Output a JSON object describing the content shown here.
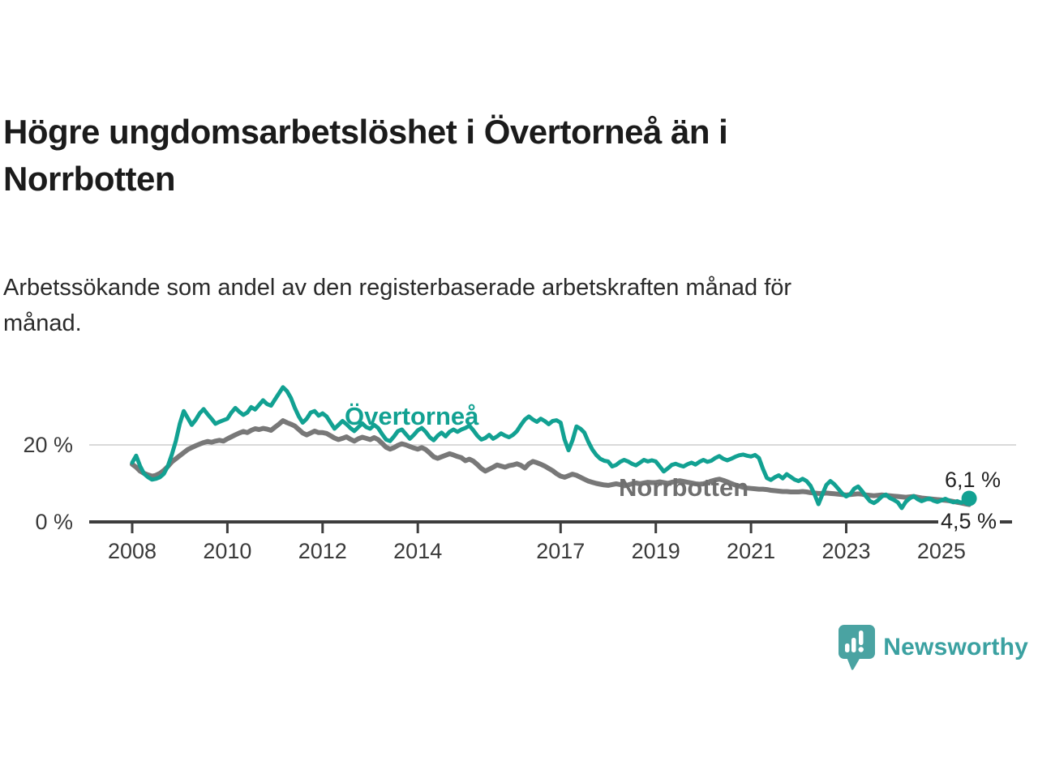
{
  "header": {
    "title_lines": [
      "Högre ungdomsarbetslöshet i Övertorneå än i",
      "Norrbotten"
    ],
    "subtitle_lines": [
      "Arbetssökande som andel av den registerbaserade arbetskraften månad för",
      "månad."
    ]
  },
  "chart_data": {
    "type": "line",
    "title": "Högre ungdomsarbetslöshet i Övertorneå än i Norrbotten",
    "subtitle": "Arbetssökande som andel av den registerbaserade arbetskraften månad för månad.",
    "x_start_year": 2008,
    "x_step_months": 1,
    "x_ticks": [
      2008,
      2010,
      2012,
      2014,
      2017,
      2019,
      2021,
      2023,
      2025
    ],
    "y_axis": {
      "unit": "%",
      "ylim": [
        0,
        36
      ],
      "ticks": [
        {
          "value": 0,
          "label": "0 %"
        },
        {
          "value": 20,
          "label": "20 %"
        }
      ],
      "gridline_at": 20
    },
    "legend_position": "inline-labels",
    "grid": "single-horizontal",
    "series": [
      {
        "id": "overtornea",
        "name": "Övertorneå",
        "color": "#12a192",
        "last_value_label": "6,1 %",
        "values": [
          15.4,
          17.2,
          14.5,
          12.5,
          11.6,
          11.0,
          11.2,
          11.6,
          12.5,
          14.5,
          17.5,
          21.0,
          25.5,
          28.8,
          27.0,
          25.2,
          26.5,
          28.2,
          29.3,
          28.0,
          26.8,
          25.5,
          26.0,
          26.4,
          26.8,
          28.4,
          29.6,
          28.6,
          27.8,
          28.4,
          29.8,
          29.2,
          30.4,
          31.6,
          30.6,
          30.2,
          31.8,
          33.4,
          35.0,
          34.0,
          32.2,
          29.6,
          27.4,
          25.8,
          26.8,
          28.4,
          28.8,
          27.6,
          28.2,
          27.4,
          25.8,
          24.2,
          25.2,
          26.2,
          25.4,
          24.4,
          23.6,
          24.6,
          25.6,
          24.6,
          24.2,
          25.2,
          24.4,
          22.8,
          21.4,
          21.0,
          22.2,
          23.6,
          24.0,
          22.8,
          21.6,
          22.6,
          23.8,
          24.4,
          23.4,
          22.0,
          21.2,
          22.4,
          23.2,
          22.2,
          23.4,
          24.0,
          23.4,
          24.0,
          24.4,
          25.0,
          23.8,
          22.4,
          21.4,
          21.8,
          22.6,
          21.6,
          22.2,
          23.0,
          22.4,
          22.0,
          22.6,
          23.6,
          25.2,
          26.6,
          27.4,
          26.6,
          26.0,
          26.8,
          26.2,
          25.4,
          26.2,
          26.4,
          25.8,
          21.4,
          18.6,
          21.2,
          24.8,
          24.2,
          23.2,
          20.8,
          18.8,
          17.4,
          16.4,
          15.9,
          15.7,
          14.4,
          14.8,
          15.6,
          16.1,
          15.7,
          15.1,
          14.7,
          15.4,
          16.1,
          15.7,
          16.0,
          15.7,
          14.4,
          13.1,
          13.9,
          14.8,
          15.1,
          14.7,
          14.4,
          15.0,
          15.4,
          14.9,
          15.6,
          16.1,
          15.6,
          15.9,
          16.6,
          17.1,
          16.4,
          16.0,
          16.4,
          16.9,
          17.3,
          17.5,
          17.2,
          17.0,
          17.4,
          16.6,
          13.8,
          11.4,
          10.9,
          11.6,
          12.1,
          11.3,
          12.4,
          11.7,
          11.0,
          10.6,
          11.2,
          10.6,
          9.4,
          7.2,
          4.6,
          7.2,
          9.6,
          10.6,
          9.8,
          8.6,
          7.4,
          6.6,
          7.2,
          8.6,
          9.2,
          8.0,
          6.6,
          5.4,
          4.9,
          5.6,
          6.6,
          7.1,
          6.2,
          5.7,
          5.1,
          3.6,
          5.2,
          6.1,
          6.7,
          5.9,
          5.4,
          5.8,
          6.1,
          5.5,
          5.2,
          5.6,
          6.0,
          5.5,
          5.1,
          5.4,
          5.0,
          5.6,
          6.1
        ]
      },
      {
        "id": "norrbotten",
        "name": "Norrbotten",
        "color": "#787878",
        "last_value_label": "4,5 %",
        "values": [
          15.0,
          14.2,
          13.2,
          12.6,
          12.2,
          11.9,
          12.1,
          12.6,
          13.4,
          14.4,
          15.6,
          16.4,
          17.2,
          18.0,
          18.8,
          19.3,
          19.8,
          20.2,
          20.6,
          20.9,
          20.7,
          21.0,
          21.2,
          21.0,
          21.6,
          22.1,
          22.6,
          23.1,
          23.5,
          23.2,
          23.8,
          24.2,
          24.0,
          24.3,
          24.1,
          23.8,
          24.6,
          25.4,
          26.3,
          25.8,
          25.4,
          24.9,
          24.0,
          23.1,
          22.6,
          23.1,
          23.6,
          23.2,
          23.2,
          23.0,
          22.4,
          21.8,
          21.4,
          21.7,
          22.1,
          21.5,
          21.0,
          21.6,
          22.0,
          21.7,
          21.4,
          21.9,
          21.4,
          20.4,
          19.4,
          18.9,
          19.3,
          19.9,
          20.3,
          20.0,
          19.6,
          19.2,
          18.9,
          19.3,
          18.8,
          17.9,
          16.9,
          16.5,
          16.9,
          17.3,
          17.7,
          17.4,
          17.0,
          16.7,
          15.9,
          16.3,
          15.8,
          14.9,
          13.9,
          13.2,
          13.7,
          14.2,
          14.8,
          14.5,
          14.2,
          14.6,
          14.8,
          15.1,
          14.7,
          14.0,
          15.1,
          15.7,
          15.4,
          15.0,
          14.5,
          13.9,
          13.3,
          12.5,
          11.9,
          11.6,
          12.0,
          12.4,
          12.1,
          11.6,
          11.1,
          10.6,
          10.3,
          10.0,
          9.8,
          9.6,
          9.5,
          9.7,
          9.9,
          9.7,
          9.4,
          9.6,
          9.9,
          10.1,
          9.9,
          10.1,
          10.3,
          10.2,
          10.2,
          10.4,
          10.2,
          10.0,
          10.3,
          10.5,
          10.7,
          10.5,
          10.3,
          10.1,
          9.9,
          9.8,
          9.9,
          10.2,
          10.6,
          10.9,
          11.1,
          10.8,
          10.4,
          10.0,
          9.6,
          9.3,
          9.0,
          8.8,
          8.7,
          8.6,
          8.5,
          8.5,
          8.4,
          8.2,
          8.1,
          8.0,
          7.9,
          7.9,
          7.8,
          7.8,
          7.8,
          7.9,
          7.8,
          7.6,
          7.5,
          7.4,
          7.4,
          7.5,
          7.4,
          7.3,
          7.2,
          7.1,
          7.0,
          7.1,
          7.2,
          7.3,
          7.2,
          7.0,
          6.9,
          6.8,
          6.9,
          7.0,
          6.9,
          6.8,
          6.7,
          6.6,
          6.5,
          6.4,
          6.5,
          6.6,
          6.4,
          6.2,
          6.1,
          6.0,
          5.9,
          5.8,
          5.7,
          5.6,
          5.5,
          5.3,
          5.1,
          4.9,
          4.7,
          4.5
        ]
      }
    ]
  },
  "branding": {
    "wordmark": "Newsworthy",
    "icon": "speech-bubble-bar-chart-icon",
    "color": "#3ba1a1",
    "icon_color": "#4aa3a2"
  }
}
